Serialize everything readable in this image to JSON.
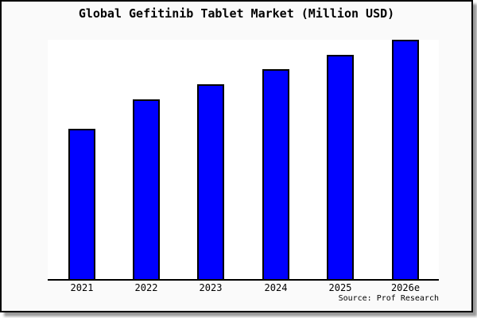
{
  "colors": {
    "frame_background": "#fafafa",
    "page_background": "#ffffff",
    "frame_border": "#000000",
    "shadow": "#999999",
    "text": "#000000"
  },
  "chart_data": {
    "type": "bar",
    "title": "Global Gefitinib Tablet Market (Million USD)",
    "categories": [
      "2021",
      "2022",
      "2023",
      "2024",
      "2025",
      "2026e"
    ],
    "values": [
      62.8,
      75.1,
      81.4,
      87.7,
      93.7,
      100
    ],
    "value_scale": "relative units; chart shows no y-axis ticks or value labels, 2026e bar (tallest) = 100",
    "xlabel": "",
    "ylabel": "",
    "ylim": [
      0,
      100
    ],
    "grid": false,
    "legend": false,
    "bar_color": "#0000FF",
    "bar_edge_color": "#000000",
    "plot_background": "#FFFFFF",
    "source": "Source: Prof Research"
  }
}
